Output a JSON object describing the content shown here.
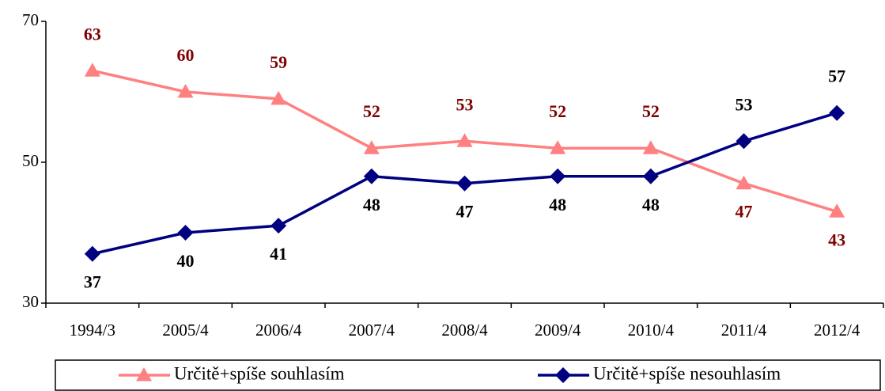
{
  "chart_data": {
    "type": "line",
    "categories": [
      "1994/3",
      "2005/4",
      "2006/4",
      "2007/4",
      "2008/4",
      "2009/4",
      "2010/4",
      "2011/4",
      "2012/4"
    ],
    "series": [
      {
        "name": "Určitě+spíše souhlasím",
        "color": "#ff8080",
        "marker": "triangle",
        "label_color": "#800000",
        "values": [
          63,
          60,
          59,
          52,
          53,
          52,
          52,
          47,
          43
        ]
      },
      {
        "name": "Určitě+spíše nesouhlasím",
        "color": "#000080",
        "marker": "diamond",
        "label_color": "#000000",
        "values": [
          37,
          40,
          41,
          48,
          47,
          48,
          48,
          53,
          57
        ]
      }
    ],
    "ylim": [
      30,
      70
    ],
    "yticks": [
      30,
      50,
      70
    ],
    "grid": false,
    "legend": "bottom"
  }
}
